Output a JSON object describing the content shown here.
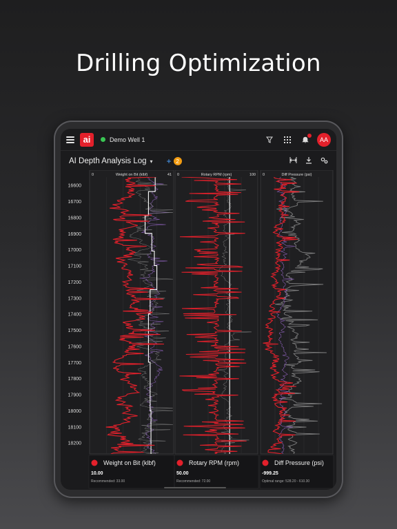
{
  "hero": {
    "title": "Drilling Optimization"
  },
  "topbar": {
    "logo_text": "ai",
    "well_name": "Demo Well 1",
    "avatar_initials": "AA",
    "status_color": "#39c553"
  },
  "toolbar": {
    "log_title": "AI Depth Analysis Log",
    "caret": "▾",
    "add_label": "+",
    "count": "2"
  },
  "colors": {
    "accent_red": "#e3202b",
    "purple": "#8a5fb5",
    "gray": "#8e8e8e"
  },
  "chart_data": {
    "type": "line",
    "y_axis": {
      "reversed": true,
      "range": [
        16550,
        18270
      ],
      "ticks": [
        16600,
        16700,
        16800,
        16900,
        17000,
        17100,
        17200,
        17300,
        17400,
        17500,
        17600,
        17700,
        17800,
        17900,
        18000,
        18100,
        18200
      ]
    },
    "tracks": [
      {
        "title": "Weight on Bit (klbf)",
        "min_label": "0",
        "max_label": "41",
        "xlim": [
          0,
          41
        ],
        "legend_label": "Weight on Bit (klbf)",
        "current_value": "10.00",
        "note": "Recommended: 33.00"
      },
      {
        "title": "Rotary RPM (rpm)",
        "min_label": "0",
        "max_label": "100",
        "xlim": [
          0,
          100
        ],
        "legend_label": "Rotary RPM (rpm)",
        "current_value": "50.00",
        "note": "Recommended: 72.00"
      },
      {
        "title": "Diff Pressure (psi)",
        "min_label": "0",
        "max_label": "",
        "xlim": [
          0,
          1000
        ],
        "legend_label": "Diff Pressure (psi)",
        "current_value": "-999.25",
        "note": "Optimal range: 528.20 - 610.30"
      }
    ]
  }
}
